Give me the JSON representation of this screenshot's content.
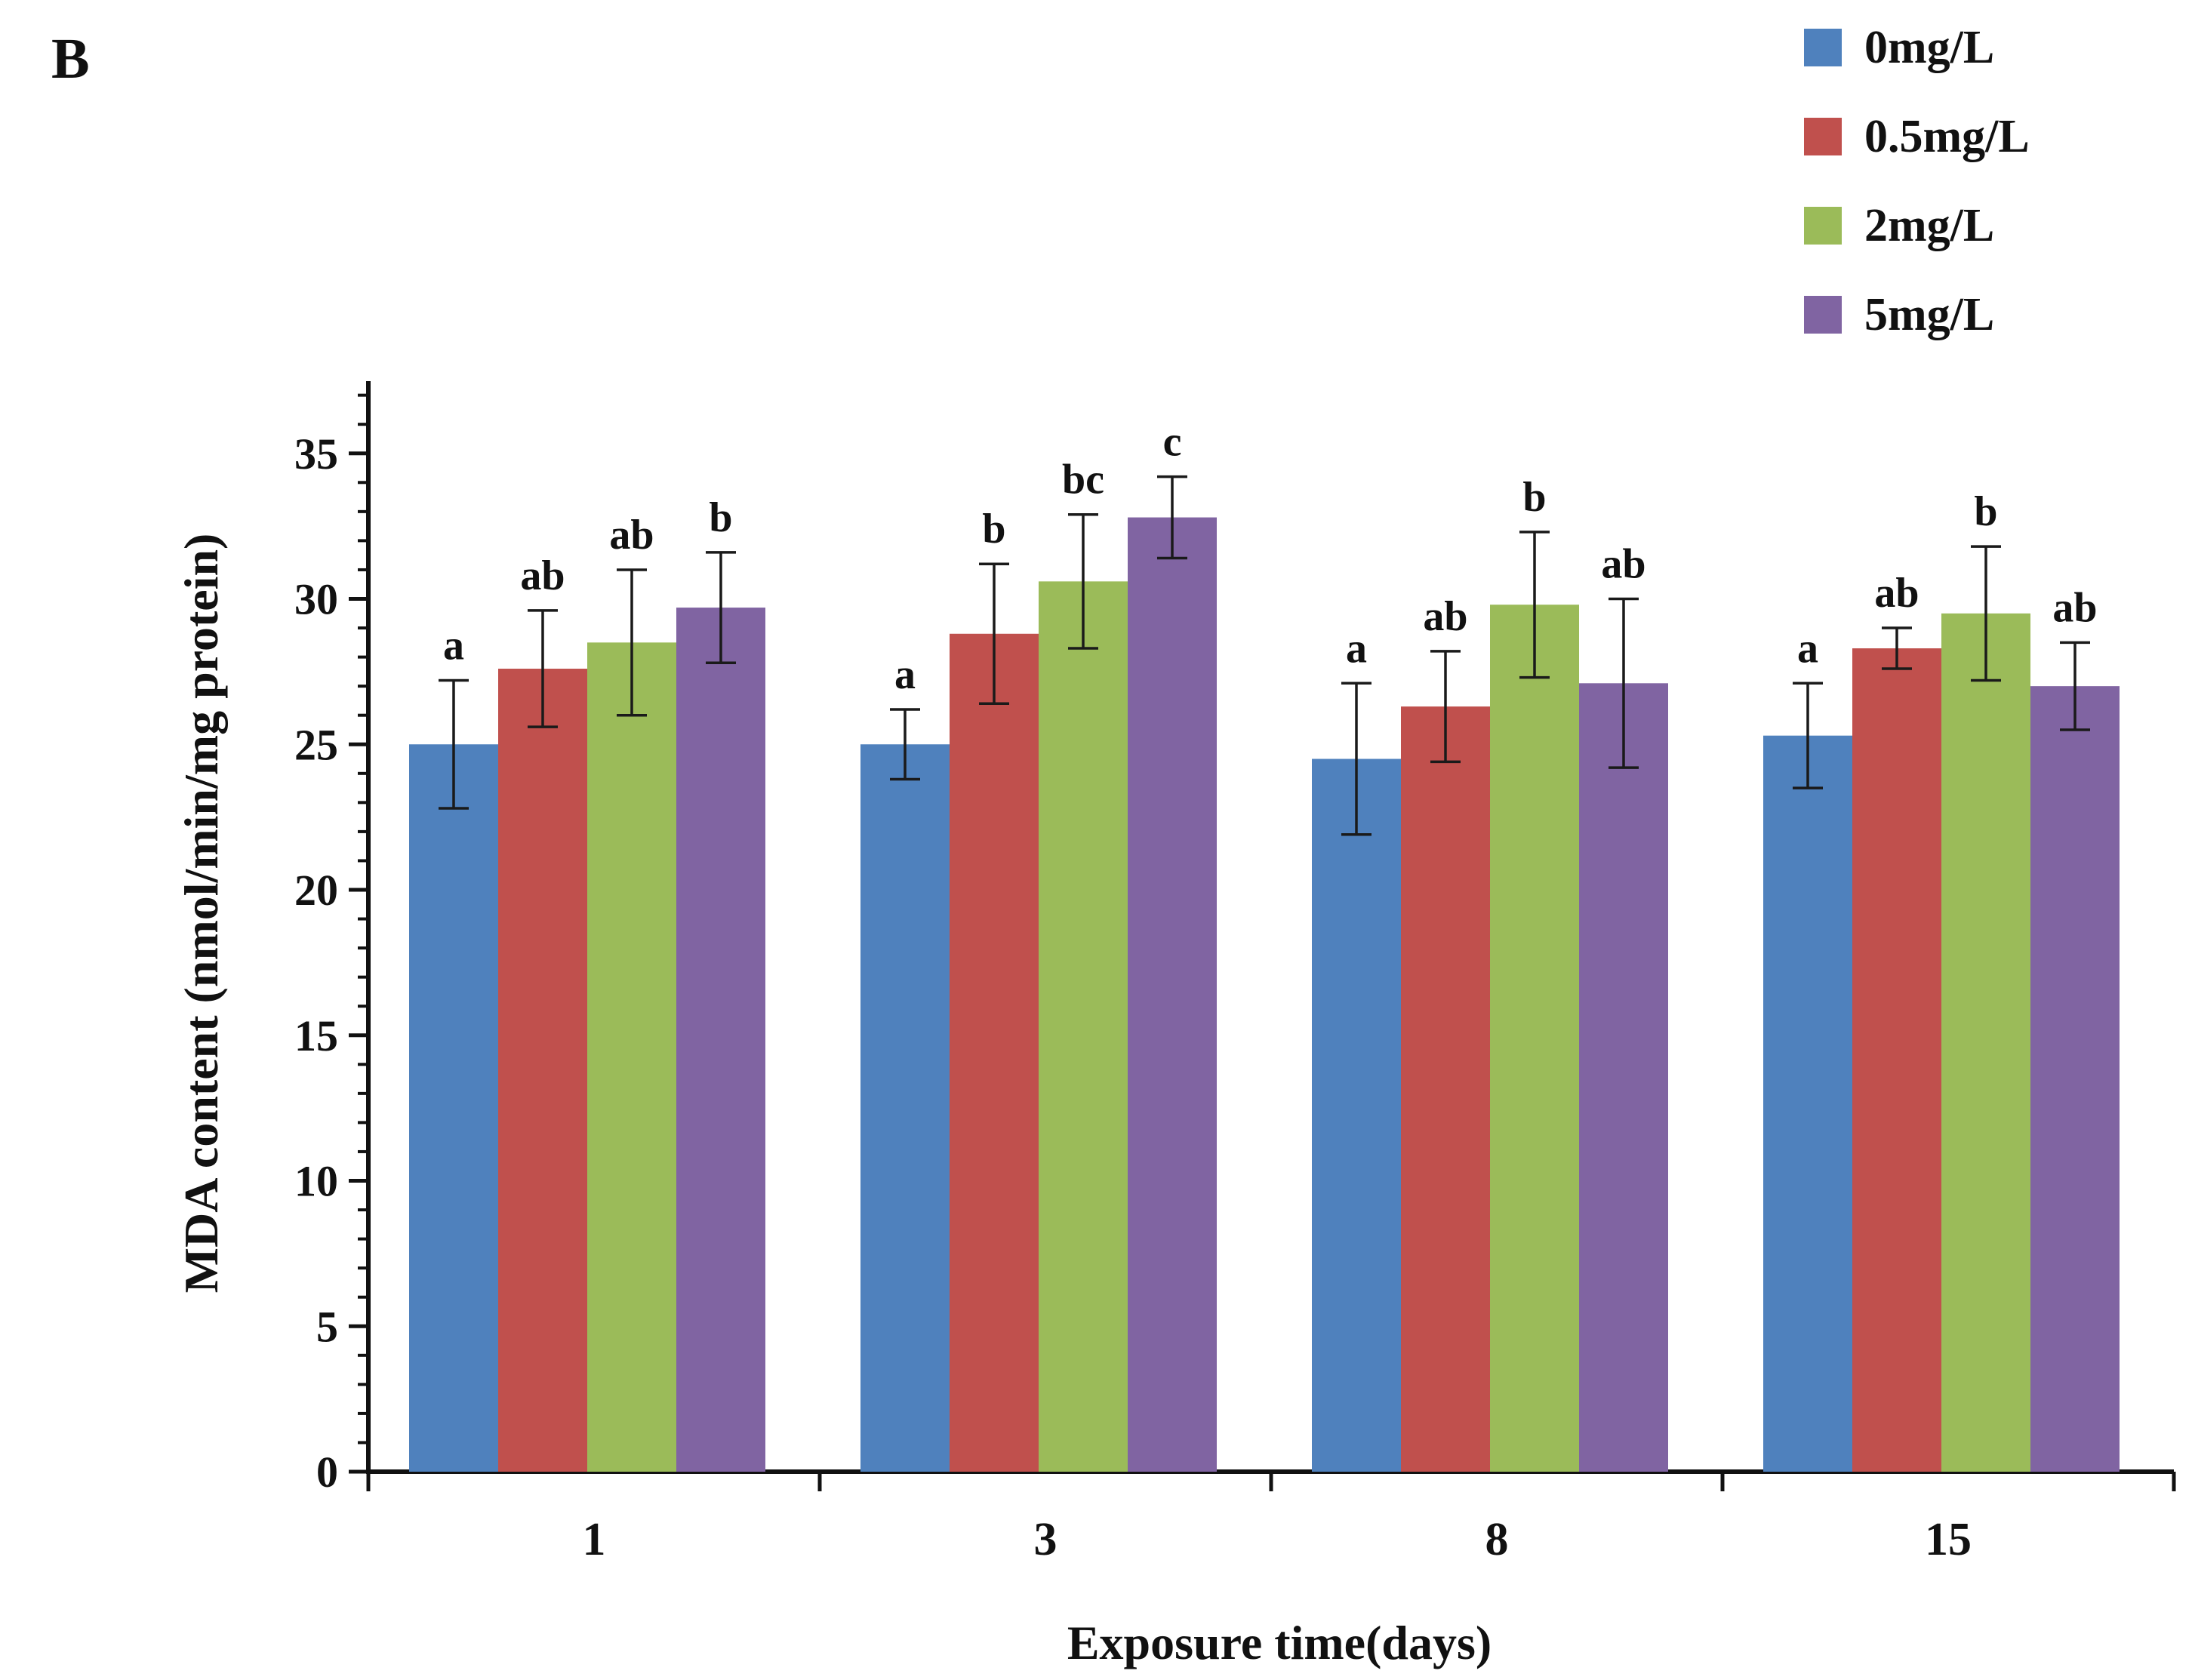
{
  "chart_data": {
    "type": "bar",
    "panel_label": "B",
    "title": "",
    "xlabel": "Exposure time(days)",
    "ylabel": "MDA content (nmol/min/mg protein)",
    "ylim": [
      0,
      37
    ],
    "yticks": [
      0,
      5,
      10,
      15,
      20,
      25,
      30,
      35
    ],
    "grid": false,
    "legend_position": "top-right",
    "categories": [
      "1",
      "3",
      "8",
      "15"
    ],
    "series": [
      {
        "name": "0mg/L",
        "color": "#4f81bd",
        "values": [
          25.0,
          25.0,
          24.5,
          25.3
        ],
        "errors": [
          2.2,
          1.2,
          2.6,
          1.8
        ],
        "sig": [
          "a",
          "a",
          "a",
          "a"
        ]
      },
      {
        "name": "0.5mg/L",
        "color": "#c0504d",
        "values": [
          27.6,
          28.8,
          26.3,
          28.3
        ],
        "errors": [
          2.0,
          2.4,
          1.9,
          0.7
        ],
        "sig": [
          "ab",
          "b",
          "ab",
          "ab"
        ]
      },
      {
        "name": "2mg/L",
        "color": "#9bbb59",
        "values": [
          28.5,
          30.6,
          29.8,
          29.5
        ],
        "errors": [
          2.5,
          2.3,
          2.5,
          2.3
        ],
        "sig": [
          "ab",
          "bc",
          "b",
          "b"
        ]
      },
      {
        "name": "5mg/L",
        "color": "#8064a2",
        "values": [
          29.7,
          32.8,
          27.1,
          27.0
        ],
        "errors": [
          1.9,
          1.4,
          2.9,
          1.5
        ],
        "sig": [
          "b",
          "c",
          "ab",
          "ab"
        ]
      }
    ]
  }
}
